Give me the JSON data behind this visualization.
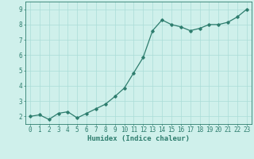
{
  "x": [
    0,
    1,
    2,
    3,
    4,
    5,
    6,
    7,
    8,
    9,
    10,
    11,
    12,
    13,
    14,
    15,
    16,
    17,
    18,
    19,
    20,
    21,
    22,
    23
  ],
  "y": [
    2.0,
    2.1,
    1.8,
    2.2,
    2.3,
    1.9,
    2.2,
    2.5,
    2.8,
    3.3,
    3.85,
    4.85,
    5.85,
    7.6,
    8.3,
    8.0,
    7.85,
    7.6,
    7.75,
    8.0,
    8.0,
    8.15,
    8.5,
    9.0
  ],
  "line_color": "#2e7d6e",
  "marker": "D",
  "marker_size": 1.8,
  "line_width": 0.9,
  "background_color": "#cff0eb",
  "grid_color": "#aaddd7",
  "tick_color": "#2e7d6e",
  "xlabel": "Humidex (Indice chaleur)",
  "xlabel_fontsize": 6.5,
  "xlabel_color": "#2e7d6e",
  "ylabel_ticks": [
    2,
    3,
    4,
    5,
    6,
    7,
    8,
    9
  ],
  "xlim": [
    -0.5,
    23.5
  ],
  "ylim": [
    1.5,
    9.5
  ],
  "xticks": [
    0,
    1,
    2,
    3,
    4,
    5,
    6,
    7,
    8,
    9,
    10,
    11,
    12,
    13,
    14,
    15,
    16,
    17,
    18,
    19,
    20,
    21,
    22,
    23
  ],
  "tick_fontsize": 5.5
}
